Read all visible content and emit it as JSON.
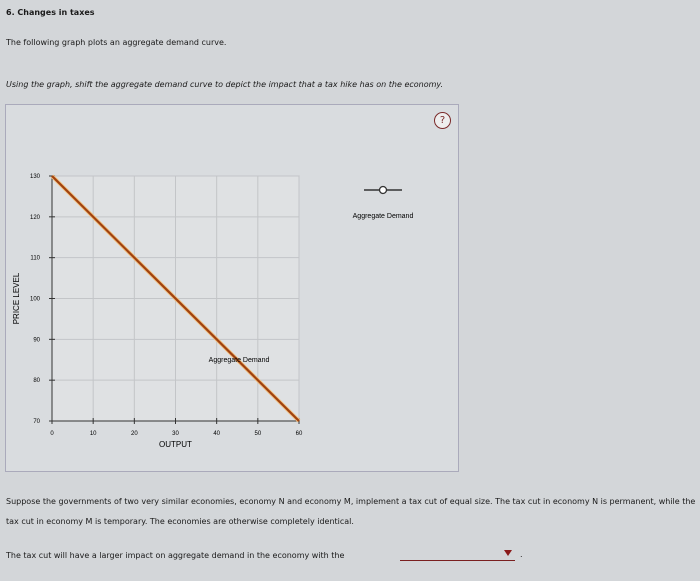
{
  "header": {
    "title": "6. Changes in taxes",
    "intro": "The following graph plots an aggregate demand curve.",
    "instruction": "Using the graph, shift the aggregate demand curve to depict the impact that a tax hike has on the economy."
  },
  "help_icon": "?",
  "chart_data": {
    "type": "line",
    "xlabel": "OUTPUT",
    "ylabel": "PRICE LEVEL",
    "xlim": [
      0,
      60
    ],
    "ylim": [
      70,
      130
    ],
    "xticks": [
      0,
      10,
      20,
      30,
      40,
      50,
      60
    ],
    "yticks": [
      70,
      80,
      90,
      100,
      110,
      120,
      130
    ],
    "grid": true,
    "series": [
      {
        "name": "Aggregate Demand",
        "x": [
          0,
          60
        ],
        "y": [
          130,
          70
        ],
        "color": "#a0410f"
      }
    ],
    "annotation": "Aggregate Demand",
    "legend": {
      "label": "Aggregate Demand",
      "placement": "right"
    }
  },
  "question": {
    "text": "Suppose the governments of two very similar economies, economy N and economy M, implement a tax cut of equal size. The tax cut in economy N is permanent, while the tax cut in economy M is temporary. The economies are otherwise completely identical.",
    "prompt": "The tax cut will have a larger impact on aggregate demand in the economy with the",
    "dropdown_value": "",
    "period": "."
  }
}
